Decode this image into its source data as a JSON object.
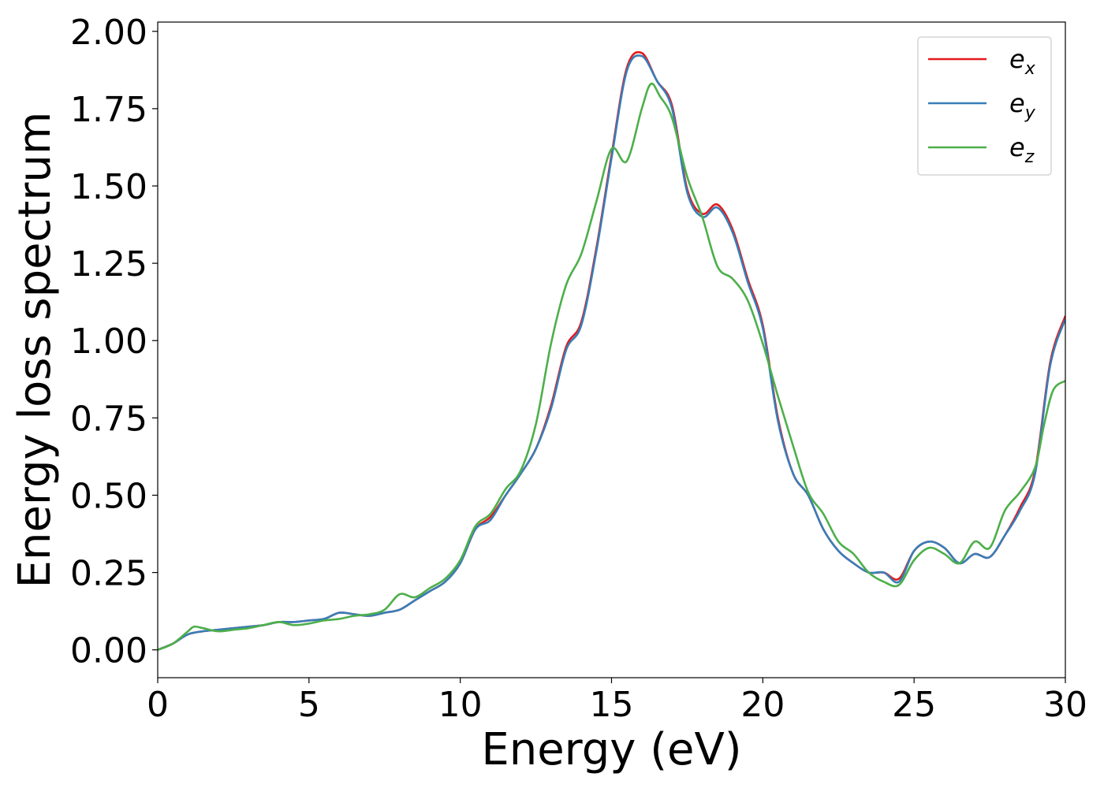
{
  "chart_data": {
    "type": "line",
    "xlabel": "Energy (eV)",
    "ylabel": "Energy loss spectrum",
    "xlim": [
      0,
      30
    ],
    "ylim": [
      -0.09,
      2.03
    ],
    "xticks": [
      "0",
      "5",
      "10",
      "15",
      "20",
      "25",
      "30"
    ],
    "yticks": [
      "0.00",
      "0.25",
      "0.50",
      "0.75",
      "1.00",
      "1.25",
      "1.50",
      "1.75",
      "2.00"
    ],
    "grid": false,
    "legend_position": "top-right",
    "series": [
      {
        "name": "e_x",
        "label_base": "e",
        "label_sub": "x",
        "color": "#e41a1c",
        "x": [
          0,
          0.5,
          1,
          1.5,
          2,
          2.5,
          3,
          3.5,
          4,
          4.5,
          5,
          5.5,
          6,
          6.5,
          7,
          7.5,
          8,
          8.5,
          9,
          9.5,
          10,
          10.5,
          11,
          11.5,
          12,
          12.5,
          13,
          13.5,
          14,
          14.5,
          15,
          15.5,
          16,
          16.5,
          17,
          17.5,
          18,
          18.5,
          19,
          19.5,
          20,
          20.5,
          21,
          21.5,
          22,
          22.5,
          23,
          23.5,
          24,
          24.5,
          25,
          25.5,
          26,
          26.5,
          27,
          27.5,
          28,
          28.5,
          29,
          29.5,
          30
        ],
        "y": [
          0.0,
          0.02,
          0.05,
          0.06,
          0.065,
          0.07,
          0.075,
          0.08,
          0.09,
          0.09,
          0.095,
          0.1,
          0.12,
          0.115,
          0.11,
          0.12,
          0.13,
          0.16,
          0.19,
          0.22,
          0.28,
          0.39,
          0.43,
          0.5,
          0.57,
          0.65,
          0.79,
          0.98,
          1.06,
          1.3,
          1.6,
          1.88,
          1.93,
          1.84,
          1.76,
          1.49,
          1.41,
          1.44,
          1.36,
          1.2,
          1.05,
          0.75,
          0.57,
          0.5,
          0.39,
          0.32,
          0.28,
          0.25,
          0.25,
          0.23,
          0.32,
          0.35,
          0.33,
          0.28,
          0.31,
          0.3,
          0.37,
          0.46,
          0.58,
          0.93,
          1.08
        ]
      },
      {
        "name": "e_y",
        "label_base": "e",
        "label_sub": "y",
        "color": "#377eb8",
        "x": [
          0,
          0.5,
          1,
          1.5,
          2,
          2.5,
          3,
          3.5,
          4,
          4.5,
          5,
          5.5,
          6,
          6.5,
          7,
          7.5,
          8,
          8.5,
          9,
          9.5,
          10,
          10.5,
          11,
          11.5,
          12,
          12.5,
          13,
          13.5,
          14,
          14.5,
          15,
          15.5,
          16,
          16.5,
          17,
          17.5,
          18,
          18.5,
          19,
          19.5,
          20,
          20.5,
          21,
          21.5,
          22,
          22.5,
          23,
          23.5,
          24,
          24.5,
          25,
          25.5,
          26,
          26.5,
          27,
          27.5,
          28,
          28.5,
          29,
          29.5,
          30
        ],
        "y": [
          0.0,
          0.02,
          0.05,
          0.06,
          0.065,
          0.07,
          0.075,
          0.08,
          0.09,
          0.09,
          0.095,
          0.1,
          0.12,
          0.115,
          0.11,
          0.12,
          0.13,
          0.16,
          0.19,
          0.22,
          0.28,
          0.39,
          0.42,
          0.5,
          0.57,
          0.65,
          0.78,
          0.97,
          1.05,
          1.29,
          1.59,
          1.87,
          1.92,
          1.84,
          1.75,
          1.48,
          1.4,
          1.43,
          1.35,
          1.19,
          1.04,
          0.74,
          0.57,
          0.5,
          0.39,
          0.32,
          0.28,
          0.25,
          0.25,
          0.22,
          0.32,
          0.35,
          0.33,
          0.28,
          0.31,
          0.3,
          0.37,
          0.45,
          0.57,
          0.92,
          1.07
        ]
      },
      {
        "name": "e_z",
        "label_base": "e",
        "label_sub": "z",
        "color": "#4daf4a",
        "x": [
          0,
          0.5,
          1,
          1.2,
          1.5,
          2,
          2.5,
          3,
          3.5,
          4,
          4.5,
          5,
          5.5,
          6,
          6.5,
          7,
          7.5,
          8,
          8.5,
          9,
          9.5,
          10,
          10.5,
          11,
          11.5,
          12,
          12.5,
          13,
          13.5,
          14,
          14.5,
          15,
          15.5,
          16,
          16.3,
          16.6,
          17,
          17.5,
          18,
          18.5,
          19,
          19.5,
          20,
          20.5,
          21,
          21.5,
          22,
          22.5,
          23,
          23.5,
          24,
          24.5,
          25,
          25.5,
          26,
          26.5,
          27,
          27.5,
          28,
          28.5,
          29,
          29.3,
          29.6,
          30
        ],
        "y": [
          0.0,
          0.02,
          0.06,
          0.075,
          0.07,
          0.06,
          0.065,
          0.07,
          0.08,
          0.09,
          0.08,
          0.085,
          0.095,
          0.1,
          0.11,
          0.115,
          0.13,
          0.18,
          0.17,
          0.2,
          0.23,
          0.29,
          0.4,
          0.44,
          0.52,
          0.58,
          0.73,
          0.99,
          1.18,
          1.28,
          1.45,
          1.62,
          1.58,
          1.75,
          1.83,
          1.79,
          1.72,
          1.53,
          1.4,
          1.24,
          1.2,
          1.13,
          0.99,
          0.82,
          0.66,
          0.51,
          0.44,
          0.35,
          0.31,
          0.25,
          0.22,
          0.21,
          0.29,
          0.33,
          0.31,
          0.28,
          0.35,
          0.33,
          0.45,
          0.51,
          0.59,
          0.73,
          0.84,
          0.87
        ]
      }
    ]
  }
}
